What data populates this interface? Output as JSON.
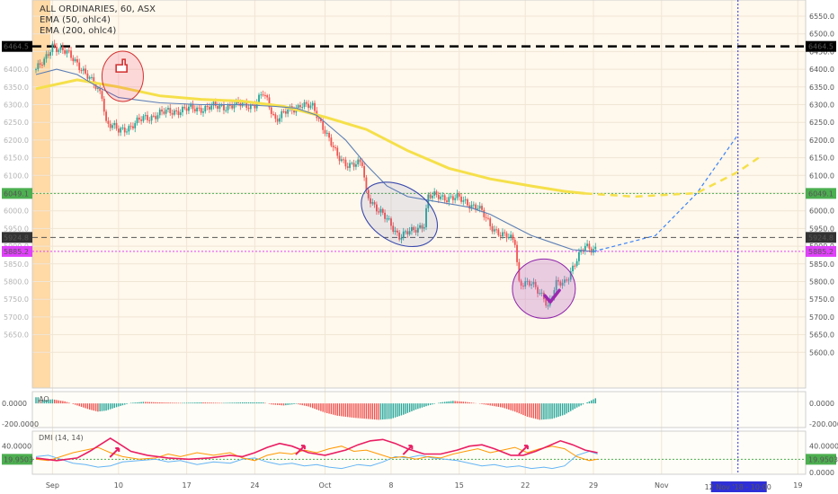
{
  "header": {
    "symbol_line": "ALL ORDINARIES, 60, ASX",
    "ema50_label": "EMA (50, ohlc4)",
    "ema200_label": "EMA (200, ohlc4)"
  },
  "price_axis": {
    "ticks": [
      "6550.0",
      "6500.0",
      "6450.0",
      "6400.0",
      "6350.0",
      "6300.0",
      "6250.0",
      "6200.0",
      "6150.0",
      "6100.0",
      "6050.0",
      "6000.0",
      "5950.0",
      "5900.0",
      "5850.0",
      "5800.0",
      "5750.0",
      "5700.0",
      "5650.0",
      "5600.0"
    ],
    "levels": [
      {
        "value": 6464.5,
        "label": "6464.5",
        "color": "#000000",
        "style": "dashed-black"
      },
      {
        "value": 6049.1,
        "label": "6049.1",
        "color": "#4caf50",
        "style": "dotted-green"
      },
      {
        "value": 5924.8,
        "label": "5924.8",
        "color": "#555555",
        "style": "dashed-grey"
      },
      {
        "value": 5885.2,
        "label": "5885.2",
        "color": "#e040fb",
        "style": "dotted-magenta"
      }
    ]
  },
  "time_axis": {
    "labels": [
      "Sep",
      "10",
      "17",
      "24",
      "Oct",
      "8",
      "15",
      "22",
      "29",
      "Nov",
      "13:00",
      "19"
    ],
    "cursor_label": "12 Nov '18 - 10:00"
  },
  "ao_panel": {
    "title": "AO",
    "left_ticks": [
      "0.0000",
      "-200.0000"
    ],
    "right_ticks": [
      "0.0000",
      "-200.0000"
    ]
  },
  "dmi_panel": {
    "title": "DMI (14, 14)",
    "ticks": [
      "40.0000",
      "19.9503",
      "0.0000"
    ],
    "current_value": "19.9503"
  },
  "colors": {
    "up": "#26a69a",
    "down": "#ef5350",
    "ema50": "#5c7fb5",
    "ema200": "#f5e04a",
    "projection": "#3b82f6",
    "cursor": "#2f2fd8",
    "dmi_adx": "#e91e63",
    "dmi_plus": "#64b5f6",
    "dmi_minus": "#ff9800"
  },
  "chart_data": {
    "type": "candlestick",
    "title": "ALL ORDINARIES, 60, ASX",
    "ylim": [
      5550,
      6570
    ],
    "path_points": [
      [
        0,
        6400
      ],
      [
        4,
        6420
      ],
      [
        8,
        6470
      ],
      [
        12,
        6455
      ],
      [
        16,
        6440
      ],
      [
        20,
        6420
      ],
      [
        26,
        6370
      ],
      [
        32,
        6330
      ],
      [
        34,
        6250
      ],
      [
        40,
        6225
      ],
      [
        46,
        6240
      ],
      [
        52,
        6260
      ],
      [
        60,
        6275
      ],
      [
        70,
        6285
      ],
      [
        80,
        6290
      ],
      [
        90,
        6295
      ],
      [
        100,
        6300
      ],
      [
        106,
        6300
      ],
      [
        110,
        6330
      ],
      [
        112,
        6310
      ],
      [
        116,
        6260
      ],
      [
        120,
        6275
      ],
      [
        126,
        6290
      ],
      [
        128,
        6305
      ],
      [
        134,
        6290
      ],
      [
        140,
        6230
      ],
      [
        146,
        6150
      ],
      [
        150,
        6135
      ],
      [
        158,
        6130
      ],
      [
        160,
        6050
      ],
      [
        166,
        6000
      ],
      [
        172,
        5960
      ],
      [
        176,
        5930
      ],
      [
        182,
        5940
      ],
      [
        188,
        5965
      ],
      [
        190,
        6040
      ],
      [
        196,
        6040
      ],
      [
        204,
        6035
      ],
      [
        210,
        6020
      ],
      [
        214,
        6010
      ],
      [
        220,
        5960
      ],
      [
        226,
        5930
      ],
      [
        232,
        5915
      ],
      [
        234,
        5800
      ],
      [
        240,
        5790
      ],
      [
        246,
        5760
      ],
      [
        248,
        5730
      ],
      [
        252,
        5790
      ],
      [
        256,
        5800
      ],
      [
        260,
        5840
      ],
      [
        266,
        5900
      ],
      [
        270,
        5895
      ]
    ],
    "ema50": [
      [
        0,
        6385
      ],
      [
        10,
        6400
      ],
      [
        20,
        6385
      ],
      [
        30,
        6350
      ],
      [
        40,
        6320
      ],
      [
        60,
        6305
      ],
      [
        80,
        6300
      ],
      [
        100,
        6300
      ],
      [
        116,
        6295
      ],
      [
        126,
        6290
      ],
      [
        136,
        6270
      ],
      [
        150,
        6200
      ],
      [
        160,
        6130
      ],
      [
        170,
        6070
      ],
      [
        180,
        6040
      ],
      [
        190,
        6030
      ],
      [
        200,
        6020
      ],
      [
        210,
        6010
      ],
      [
        220,
        5990
      ],
      [
        230,
        5960
      ],
      [
        240,
        5930
      ],
      [
        250,
        5910
      ],
      [
        260,
        5890
      ],
      [
        270,
        5885
      ]
    ],
    "ema200": [
      [
        0,
        6345
      ],
      [
        20,
        6370
      ],
      [
        40,
        6350
      ],
      [
        60,
        6325
      ],
      [
        80,
        6315
      ],
      [
        100,
        6310
      ],
      [
        120,
        6295
      ],
      [
        140,
        6265
      ],
      [
        160,
        6230
      ],
      [
        180,
        6170
      ],
      [
        200,
        6120
      ],
      [
        220,
        6090
      ],
      [
        240,
        6070
      ],
      [
        256,
        6055
      ],
      [
        266,
        6049
      ]
    ],
    "projection_up": [
      [
        270,
        5885
      ],
      [
        300,
        5930
      ],
      [
        320,
        6049
      ],
      [
        340,
        6215
      ]
    ],
    "projection_ema": [
      [
        266,
        6049
      ],
      [
        290,
        6040
      ],
      [
        320,
        6050
      ],
      [
        340,
        6110
      ],
      [
        350,
        6150
      ]
    ],
    "markers": [
      "down-hand",
      "check-mark"
    ],
    "ao_points": [
      [
        2,
        30
      ],
      [
        8,
        40
      ],
      [
        14,
        20
      ],
      [
        20,
        -20
      ],
      [
        26,
        -60
      ],
      [
        30,
        -80
      ],
      [
        34,
        -70
      ],
      [
        40,
        -30
      ],
      [
        46,
        5
      ],
      [
        52,
        15
      ],
      [
        60,
        10
      ],
      [
        70,
        5
      ],
      [
        80,
        10
      ],
      [
        90,
        5
      ],
      [
        100,
        10
      ],
      [
        110,
        10
      ],
      [
        114,
        -10
      ],
      [
        120,
        -20
      ],
      [
        126,
        -5
      ],
      [
        132,
        -30
      ],
      [
        140,
        -90
      ],
      [
        146,
        -120
      ],
      [
        154,
        -140
      ],
      [
        160,
        -150
      ],
      [
        166,
        -160
      ],
      [
        172,
        -150
      ],
      [
        178,
        -110
      ],
      [
        184,
        -60
      ],
      [
        190,
        -20
      ],
      [
        196,
        10
      ],
      [
        202,
        25
      ],
      [
        208,
        15
      ],
      [
        214,
        0
      ],
      [
        220,
        -20
      ],
      [
        226,
        -40
      ],
      [
        232,
        -80
      ],
      [
        238,
        -130
      ],
      [
        244,
        -160
      ],
      [
        250,
        -150
      ],
      [
        256,
        -110
      ],
      [
        262,
        -40
      ],
      [
        268,
        20
      ],
      [
        272,
        60
      ]
    ],
    "dmi_adx": [
      [
        0,
        22
      ],
      [
        10,
        18
      ],
      [
        20,
        22
      ],
      [
        26,
        32
      ],
      [
        30,
        40
      ],
      [
        36,
        52
      ],
      [
        40,
        44
      ],
      [
        46,
        32
      ],
      [
        54,
        26
      ],
      [
        64,
        22
      ],
      [
        74,
        20
      ],
      [
        84,
        22
      ],
      [
        94,
        26
      ],
      [
        100,
        24
      ],
      [
        106,
        30
      ],
      [
        112,
        38
      ],
      [
        118,
        44
      ],
      [
        124,
        40
      ],
      [
        132,
        30
      ],
      [
        140,
        26
      ],
      [
        150,
        34
      ],
      [
        156,
        42
      ],
      [
        162,
        48
      ],
      [
        168,
        50
      ],
      [
        174,
        44
      ],
      [
        180,
        36
      ],
      [
        188,
        28
      ],
      [
        196,
        28
      ],
      [
        204,
        34
      ],
      [
        210,
        40
      ],
      [
        216,
        42
      ],
      [
        222,
        36
      ],
      [
        230,
        26
      ],
      [
        236,
        26
      ],
      [
        242,
        32
      ],
      [
        248,
        40
      ],
      [
        254,
        48
      ],
      [
        260,
        42
      ],
      [
        266,
        34
      ],
      [
        272,
        30
      ]
    ],
    "dmi_plus": [
      [
        0,
        24
      ],
      [
        6,
        26
      ],
      [
        12,
        20
      ],
      [
        18,
        14
      ],
      [
        24,
        12
      ],
      [
        30,
        8
      ],
      [
        36,
        10
      ],
      [
        42,
        16
      ],
      [
        50,
        18
      ],
      [
        58,
        20
      ],
      [
        64,
        16
      ],
      [
        70,
        18
      ],
      [
        78,
        12
      ],
      [
        86,
        16
      ],
      [
        94,
        14
      ],
      [
        100,
        20
      ],
      [
        106,
        22
      ],
      [
        112,
        16
      ],
      [
        118,
        12
      ],
      [
        124,
        14
      ],
      [
        130,
        10
      ],
      [
        136,
        12
      ],
      [
        142,
        8
      ],
      [
        148,
        6
      ],
      [
        156,
        12
      ],
      [
        162,
        10
      ],
      [
        168,
        16
      ],
      [
        174,
        24
      ],
      [
        180,
        22
      ],
      [
        186,
        26
      ],
      [
        192,
        22
      ],
      [
        198,
        20
      ],
      [
        204,
        18
      ],
      [
        210,
        14
      ],
      [
        216,
        10
      ],
      [
        222,
        12
      ],
      [
        228,
        8
      ],
      [
        234,
        10
      ],
      [
        240,
        6
      ],
      [
        246,
        8
      ],
      [
        250,
        6
      ],
      [
        256,
        10
      ],
      [
        262,
        26
      ],
      [
        268,
        32
      ],
      [
        272,
        28
      ]
    ],
    "dmi_minus": [
      [
        0,
        20
      ],
      [
        6,
        18
      ],
      [
        12,
        24
      ],
      [
        18,
        30
      ],
      [
        24,
        34
      ],
      [
        30,
        38
      ],
      [
        36,
        30
      ],
      [
        42,
        24
      ],
      [
        50,
        20
      ],
      [
        58,
        22
      ],
      [
        64,
        28
      ],
      [
        70,
        24
      ],
      [
        78,
        30
      ],
      [
        86,
        26
      ],
      [
        94,
        30
      ],
      [
        100,
        22
      ],
      [
        106,
        18
      ],
      [
        112,
        26
      ],
      [
        118,
        30
      ],
      [
        124,
        28
      ],
      [
        130,
        34
      ],
      [
        136,
        30
      ],
      [
        142,
        36
      ],
      [
        148,
        40
      ],
      [
        154,
        32
      ],
      [
        160,
        34
      ],
      [
        166,
        28
      ],
      [
        172,
        22
      ],
      [
        178,
        24
      ],
      [
        184,
        20
      ],
      [
        190,
        24
      ],
      [
        196,
        22
      ],
      [
        202,
        28
      ],
      [
        208,
        32
      ],
      [
        214,
        36
      ],
      [
        220,
        30
      ],
      [
        226,
        34
      ],
      [
        232,
        38
      ],
      [
        238,
        30
      ],
      [
        244,
        36
      ],
      [
        250,
        40
      ],
      [
        256,
        36
      ],
      [
        262,
        24
      ],
      [
        268,
        18
      ],
      [
        272,
        20
      ]
    ]
  }
}
